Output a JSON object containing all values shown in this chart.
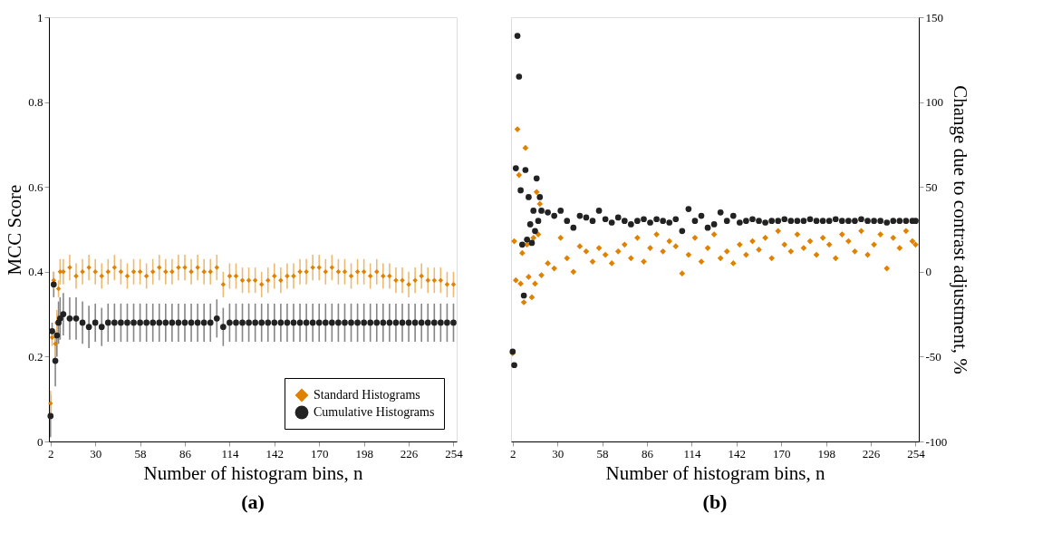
{
  "chart_data": [
    {
      "type": "scatter",
      "title": "(a)",
      "xlabel": "Number of histogram bins, n",
      "ylabel": "MCC Score",
      "xlim": [
        1,
        256
      ],
      "xticks": [
        2,
        30,
        58,
        86,
        114,
        142,
        170,
        198,
        226,
        254
      ],
      "ylim": [
        0,
        1
      ],
      "yticks": [
        0,
        0.2,
        0.4,
        0.6,
        0.8,
        1
      ],
      "grid": false,
      "legend": "bottom right",
      "series": [
        {
          "name": "Standard Histograms",
          "color": "#e08200",
          "marker": "diamond",
          "x": [
            2,
            3,
            4,
            5,
            6,
            7,
            8,
            10,
            14,
            18,
            22,
            26,
            30,
            34,
            38,
            42,
            46,
            50,
            54,
            58,
            62,
            66,
            70,
            74,
            78,
            82,
            86,
            90,
            94,
            98,
            102,
            106,
            110,
            114,
            118,
            122,
            126,
            130,
            134,
            138,
            142,
            146,
            150,
            154,
            158,
            162,
            166,
            170,
            174,
            178,
            182,
            186,
            190,
            194,
            198,
            202,
            206,
            210,
            214,
            218,
            222,
            226,
            230,
            234,
            238,
            242,
            246,
            250,
            254
          ],
          "values": [
            0.09,
            0.245,
            0.38,
            0.23,
            0.28,
            0.36,
            0.4,
            0.4,
            0.41,
            0.39,
            0.4,
            0.41,
            0.4,
            0.39,
            0.4,
            0.41,
            0.4,
            0.39,
            0.4,
            0.4,
            0.39,
            0.4,
            0.41,
            0.4,
            0.4,
            0.41,
            0.41,
            0.4,
            0.41,
            0.4,
            0.4,
            0.41,
            0.37,
            0.39,
            0.39,
            0.38,
            0.38,
            0.38,
            0.37,
            0.38,
            0.39,
            0.38,
            0.39,
            0.39,
            0.4,
            0.4,
            0.41,
            0.41,
            0.4,
            0.41,
            0.4,
            0.4,
            0.39,
            0.4,
            0.4,
            0.39,
            0.4,
            0.39,
            0.39,
            0.38,
            0.38,
            0.37,
            0.38,
            0.39,
            0.38,
            0.38,
            0.38,
            0.37,
            0.37
          ],
          "errors": [
            0.03,
            0.02,
            0.02,
            0.03,
            0.03,
            0.02,
            0.03,
            0.03,
            0.03,
            0.03,
            0.03,
            0.03,
            0.03,
            0.03,
            0.03,
            0.03,
            0.03,
            0.03,
            0.03,
            0.03,
            0.03,
            0.03,
            0.03,
            0.03,
            0.03,
            0.03,
            0.03,
            0.03,
            0.03,
            0.03,
            0.03,
            0.03,
            0.03,
            0.03,
            0.03,
            0.03,
            0.03,
            0.03,
            0.03,
            0.03,
            0.03,
            0.03,
            0.03,
            0.03,
            0.03,
            0.03,
            0.03,
            0.03,
            0.03,
            0.03,
            0.03,
            0.03,
            0.03,
            0.03,
            0.03,
            0.03,
            0.03,
            0.03,
            0.03,
            0.03,
            0.03,
            0.03,
            0.03,
            0.03,
            0.03,
            0.03,
            0.03,
            0.03,
            0.03
          ]
        },
        {
          "name": "Cumulative Histograms",
          "color": "#222222",
          "marker": "circle",
          "x": [
            2,
            3,
            4,
            5,
            6,
            7,
            8,
            10,
            14,
            18,
            22,
            26,
            30,
            34,
            38,
            42,
            46,
            50,
            54,
            58,
            62,
            66,
            70,
            74,
            78,
            82,
            86,
            90,
            94,
            98,
            102,
            106,
            110,
            114,
            118,
            122,
            126,
            130,
            134,
            138,
            142,
            146,
            150,
            154,
            158,
            162,
            166,
            170,
            174,
            178,
            182,
            186,
            190,
            194,
            198,
            202,
            206,
            210,
            214,
            218,
            222,
            226,
            230,
            234,
            238,
            242,
            246,
            250,
            254
          ],
          "values": [
            0.06,
            0.26,
            0.37,
            0.19,
            0.25,
            0.28,
            0.29,
            0.3,
            0.29,
            0.29,
            0.28,
            0.27,
            0.28,
            0.27,
            0.28,
            0.28,
            0.28,
            0.28,
            0.28,
            0.28,
            0.28,
            0.28,
            0.28,
            0.28,
            0.28,
            0.28,
            0.28,
            0.28,
            0.28,
            0.28,
            0.28,
            0.29,
            0.27,
            0.28,
            0.28,
            0.28,
            0.28,
            0.28,
            0.28,
            0.28,
            0.28,
            0.28,
            0.28,
            0.28,
            0.28,
            0.28,
            0.28,
            0.28,
            0.28,
            0.28,
            0.28,
            0.28,
            0.28,
            0.28,
            0.28,
            0.28,
            0.28,
            0.28,
            0.28,
            0.28,
            0.28,
            0.28,
            0.28,
            0.28,
            0.28,
            0.28,
            0.28,
            0.28,
            0.28
          ],
          "errors": [
            0.05,
            0.02,
            0.03,
            0.06,
            0.05,
            0.05,
            0.05,
            0.05,
            0.05,
            0.05,
            0.05,
            0.05,
            0.045,
            0.045,
            0.045,
            0.045,
            0.045,
            0.045,
            0.045,
            0.045,
            0.045,
            0.045,
            0.045,
            0.045,
            0.045,
            0.045,
            0.045,
            0.045,
            0.045,
            0.045,
            0.045,
            0.045,
            0.045,
            0.045,
            0.045,
            0.045,
            0.045,
            0.045,
            0.045,
            0.045,
            0.045,
            0.045,
            0.045,
            0.045,
            0.045,
            0.045,
            0.045,
            0.045,
            0.045,
            0.045,
            0.045,
            0.045,
            0.045,
            0.045,
            0.045,
            0.045,
            0.045,
            0.045,
            0.045,
            0.045,
            0.045,
            0.045,
            0.045,
            0.045,
            0.045,
            0.045,
            0.045,
            0.045,
            0.045
          ]
        }
      ]
    },
    {
      "type": "scatter",
      "title": "(b)",
      "xlabel": "Number of histogram bins, n",
      "y2label": "Change due to contrast adjustment, %",
      "xlim": [
        1,
        256
      ],
      "xticks": [
        2,
        30,
        58,
        86,
        114,
        142,
        170,
        198,
        226,
        254
      ],
      "y2lim": [
        -100,
        150
      ],
      "y2ticks": [
        -100,
        -50,
        0,
        50,
        100,
        150
      ],
      "grid": false,
      "series": [
        {
          "color": "#e08200",
          "marker": "diamond",
          "axis": "y2",
          "x": [
            2,
            3,
            4,
            5,
            6,
            7,
            8,
            9,
            10,
            11,
            12,
            13,
            14,
            15,
            16,
            17,
            18,
            19,
            20,
            24,
            28,
            32,
            36,
            40,
            44,
            48,
            52,
            56,
            60,
            64,
            68,
            72,
            76,
            80,
            84,
            88,
            92,
            96,
            100,
            104,
            108,
            112,
            116,
            120,
            124,
            128,
            132,
            136,
            140,
            144,
            148,
            152,
            156,
            160,
            164,
            168,
            172,
            176,
            180,
            184,
            188,
            192,
            196,
            200,
            204,
            208,
            212,
            216,
            220,
            224,
            228,
            232,
            236,
            240,
            244,
            248,
            252,
            254
          ],
          "values": [
            -48,
            18,
            -5,
            84,
            57,
            -7,
            11,
            -18,
            73,
            16,
            -3,
            28,
            -15,
            20,
            -7,
            47,
            22,
            40,
            -2,
            5,
            2,
            20,
            8,
            0,
            15,
            12,
            6,
            14,
            10,
            5,
            12,
            16,
            8,
            20,
            6,
            14,
            22,
            12,
            18,
            15,
            -1,
            10,
            20,
            6,
            14,
            22,
            8,
            12,
            5,
            16,
            10,
            18,
            13,
            20,
            8,
            24,
            16,
            12,
            22,
            14,
            18,
            10,
            20,
            16,
            8,
            22,
            18,
            12,
            24,
            10,
            16,
            22,
            2,
            20,
            14,
            24,
            18,
            16
          ]
        },
        {
          "color": "#222222",
          "marker": "circle",
          "axis": "y2",
          "x": [
            2,
            3,
            4,
            5,
            6,
            7,
            8,
            9,
            10,
            11,
            12,
            13,
            14,
            15,
            16,
            17,
            18,
            19,
            20,
            24,
            28,
            32,
            36,
            40,
            44,
            48,
            52,
            56,
            60,
            64,
            68,
            72,
            76,
            80,
            84,
            88,
            92,
            96,
            100,
            104,
            108,
            112,
            116,
            120,
            124,
            128,
            132,
            136,
            140,
            144,
            148,
            152,
            156,
            160,
            164,
            168,
            172,
            176,
            180,
            184,
            188,
            192,
            196,
            200,
            204,
            208,
            212,
            216,
            220,
            224,
            228,
            232,
            236,
            240,
            244,
            248,
            252,
            254
          ],
          "values": [
            -47,
            -55,
            61,
            139,
            115,
            48,
            16,
            -14,
            60,
            19,
            44,
            28,
            17,
            36,
            24,
            55,
            30,
            44,
            36,
            35,
            33,
            36,
            30,
            26,
            33,
            32,
            30,
            36,
            31,
            29,
            32,
            30,
            28,
            30,
            31,
            29,
            31,
            30,
            29,
            31,
            24,
            37,
            30,
            33,
            26,
            28,
            35,
            30,
            33,
            29,
            30,
            31,
            30,
            29,
            30,
            30,
            31,
            30,
            30,
            30,
            31,
            30,
            30,
            30,
            31,
            30,
            30,
            30,
            31,
            30,
            30,
            30,
            29,
            30,
            30,
            30,
            30,
            30
          ]
        }
      ]
    }
  ]
}
